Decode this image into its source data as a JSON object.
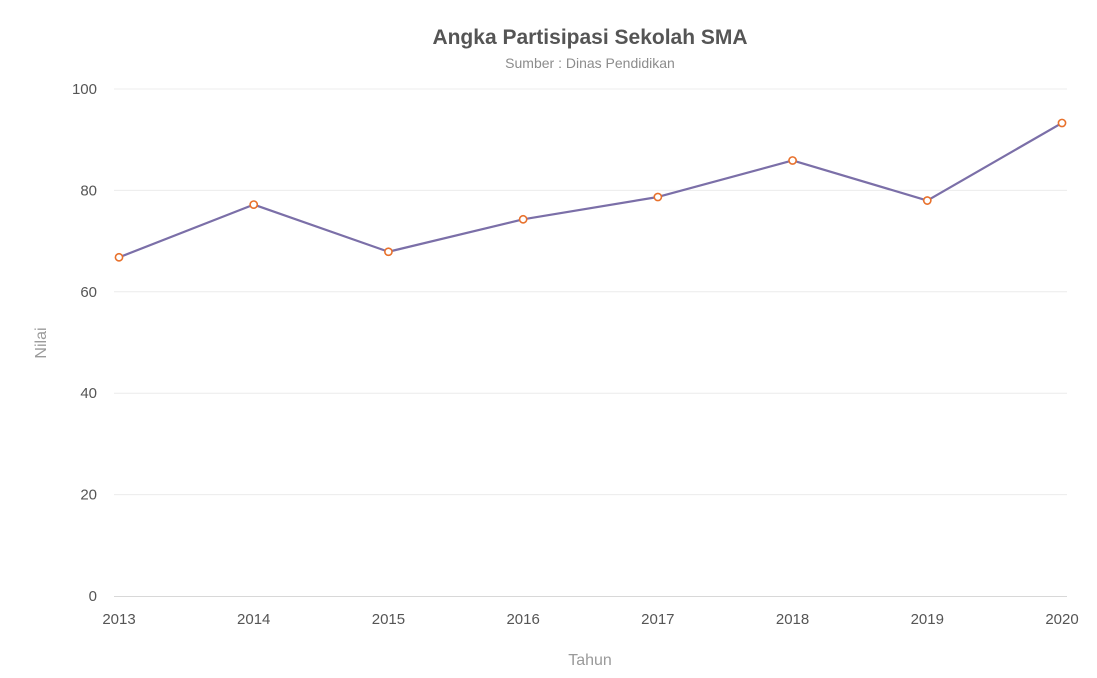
{
  "chart_data": {
    "type": "line",
    "title": "Angka Partisipasi Sekolah SMA",
    "subtitle": "Sumber : Dinas Pendidikan",
    "xlabel": "Tahun",
    "ylabel": "Nilai",
    "categories": [
      "2013",
      "2014",
      "2015",
      "2016",
      "2017",
      "2018",
      "2019",
      "2020"
    ],
    "series": [
      {
        "values": [
          66.8,
          77.2,
          67.9,
          74.3,
          78.7,
          85.9,
          78.0,
          93.3
        ],
        "color": "#7b6fa8",
        "marker_color": "#e8712c"
      }
    ],
    "ylim": [
      0,
      100
    ],
    "yticks": [
      0,
      20,
      40,
      60,
      80,
      100
    ],
    "grid": true,
    "legend": "none"
  }
}
